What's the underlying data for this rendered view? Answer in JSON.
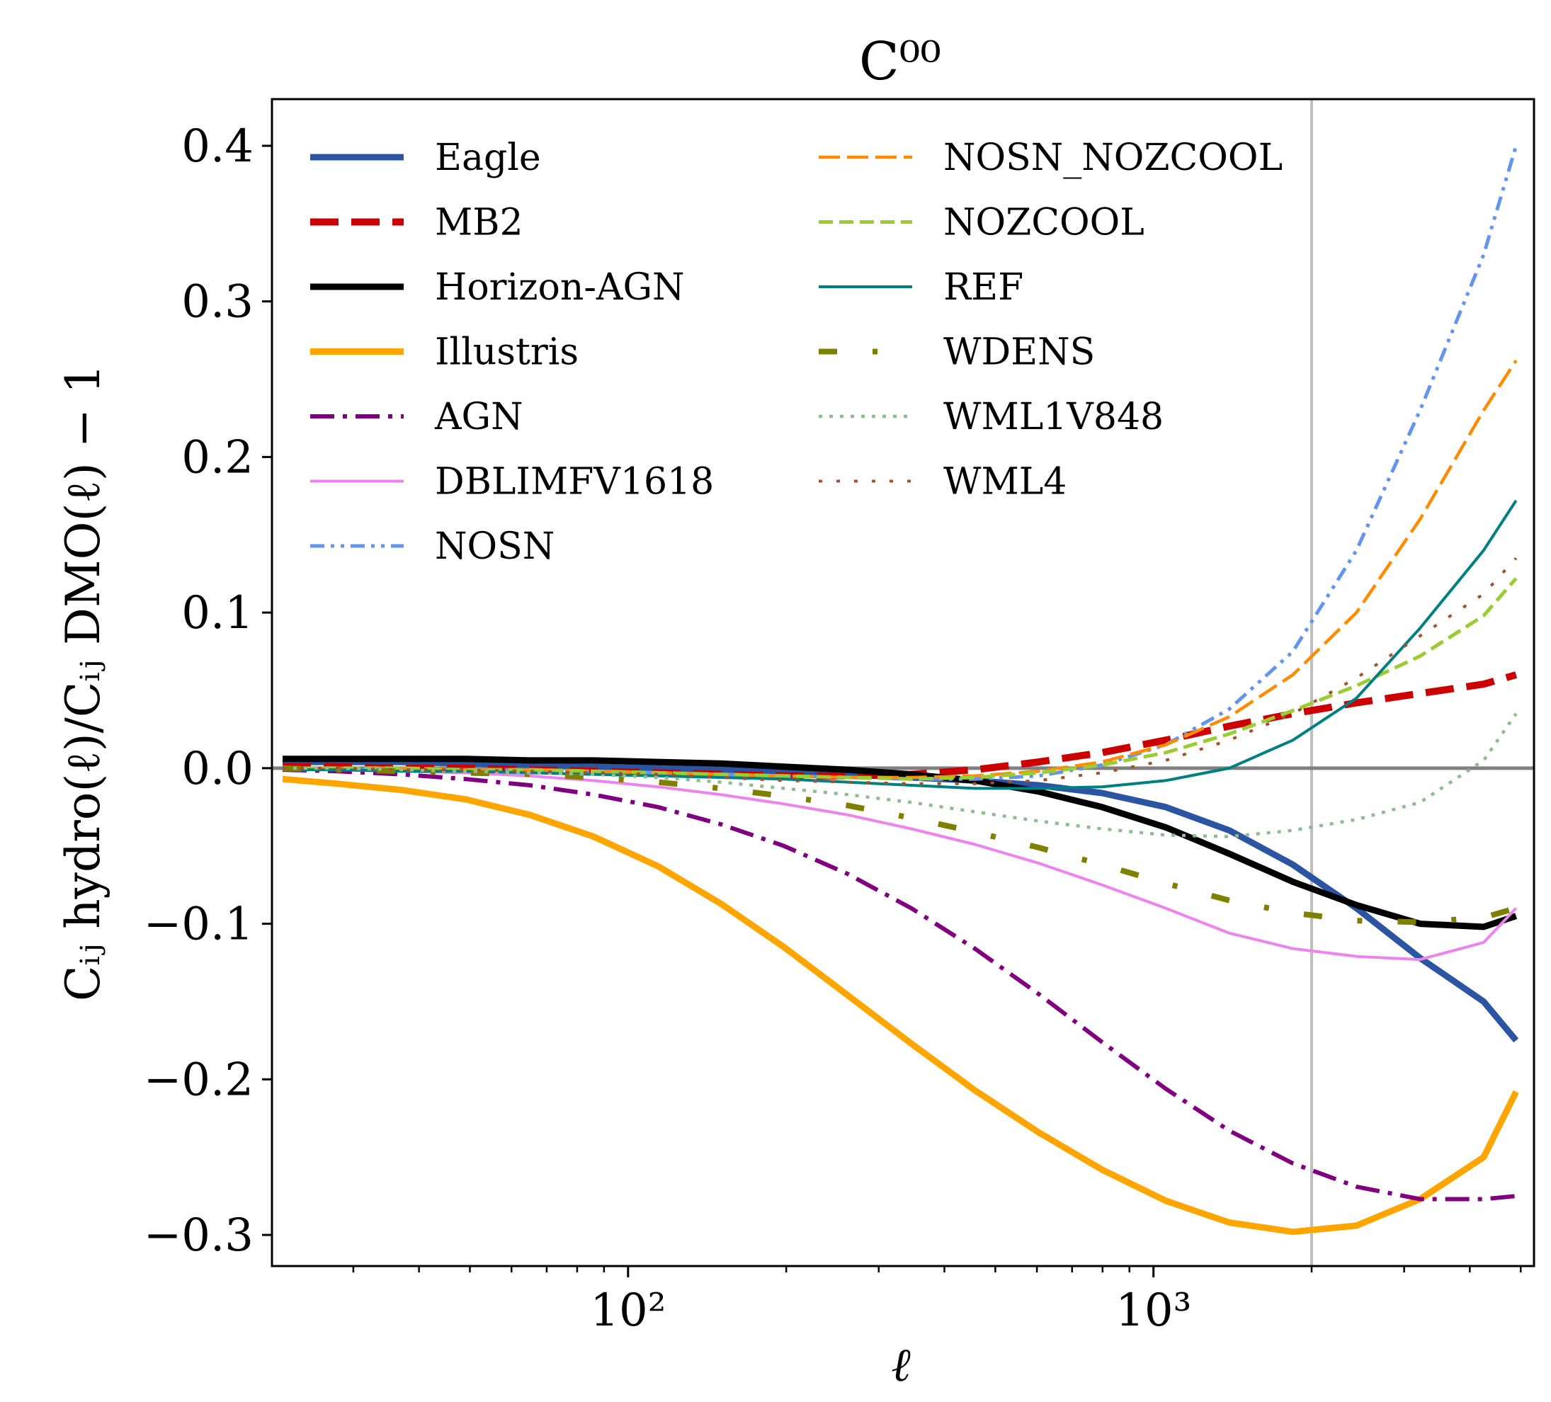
{
  "chart_data": {
    "type": "line",
    "title": "C⁰⁰",
    "xlabel": "ℓ",
    "ylabel": "Cᵢⱼ hydro(ℓ)/Cᵢⱼ DMO(ℓ) − 1",
    "xscale": "log",
    "xlim": [
      21,
      5300
    ],
    "ylim": [
      -0.32,
      0.43
    ],
    "xticks": [
      {
        "value": 100,
        "label": "10²"
      },
      {
        "value": 1000,
        "label": "10³"
      }
    ],
    "yticks": [
      {
        "value": -0.3,
        "label": "−0.3"
      },
      {
        "value": -0.2,
        "label": "−0.2"
      },
      {
        "value": -0.1,
        "label": "−0.1"
      },
      {
        "value": 0.0,
        "label": "0.0"
      },
      {
        "value": 0.1,
        "label": "0.1"
      },
      {
        "value": 0.2,
        "label": "0.2"
      },
      {
        "value": 0.3,
        "label": "0.3"
      },
      {
        "value": 0.4,
        "label": "0.4"
      }
    ],
    "reference_lines": {
      "horizontal_y": 0.0,
      "vertical_x": 2000
    },
    "grid": false,
    "legend_position": "top-left",
    "x": [
      22,
      28,
      37,
      49,
      65,
      86,
      114,
      150,
      198,
      262,
      346,
      457,
      604,
      798,
      1055,
      1394,
      1842,
      2434,
      3217,
      4251,
      4900
    ],
    "series": [
      {
        "name": "Eagle",
        "color": "#2b54a3",
        "style": "solid-thick",
        "values": [
          0.004,
          0.004,
          0.004,
          0.003,
          0.002,
          0.001,
          0.0,
          -0.001,
          -0.002,
          -0.004,
          -0.006,
          -0.008,
          -0.011,
          -0.016,
          -0.025,
          -0.04,
          -0.062,
          -0.09,
          -0.122,
          -0.15,
          -0.175
        ]
      },
      {
        "name": "MB2",
        "color": "#cc0000",
        "style": "dashed-thick",
        "values": [
          0.001,
          0.001,
          0.0,
          0.0,
          -0.001,
          -0.002,
          -0.003,
          -0.004,
          -0.005,
          -0.005,
          -0.004,
          -0.001,
          0.004,
          0.01,
          0.018,
          0.027,
          0.035,
          0.042,
          0.048,
          0.054,
          0.06
        ]
      },
      {
        "name": "Horizon-AGN",
        "color": "#000000",
        "style": "solid-thick",
        "values": [
          0.006,
          0.006,
          0.006,
          0.006,
          0.005,
          0.005,
          0.004,
          0.003,
          0.001,
          -0.001,
          -0.004,
          -0.008,
          -0.015,
          -0.025,
          -0.038,
          -0.055,
          -0.073,
          -0.088,
          -0.1,
          -0.102,
          -0.095
        ]
      },
      {
        "name": "Illustris",
        "color": "#ffa500",
        "style": "solid-thick",
        "values": [
          -0.007,
          -0.01,
          -0.014,
          -0.02,
          -0.03,
          -0.044,
          -0.063,
          -0.087,
          -0.115,
          -0.146,
          -0.177,
          -0.207,
          -0.234,
          -0.258,
          -0.278,
          -0.292,
          -0.298,
          -0.294,
          -0.277,
          -0.25,
          -0.208
        ]
      },
      {
        "name": "AGN",
        "color": "#800080",
        "style": "dashdot",
        "values": [
          -0.001,
          -0.002,
          -0.004,
          -0.007,
          -0.011,
          -0.017,
          -0.025,
          -0.036,
          -0.05,
          -0.068,
          -0.09,
          -0.116,
          -0.145,
          -0.176,
          -0.206,
          -0.233,
          -0.254,
          -0.269,
          -0.277,
          -0.277,
          -0.275
        ]
      },
      {
        "name": "DBLIMFV1618",
        "color": "#ee82ee",
        "style": "solid-thin",
        "values": [
          -0.001,
          -0.001,
          -0.002,
          -0.003,
          -0.005,
          -0.008,
          -0.012,
          -0.017,
          -0.023,
          -0.03,
          -0.039,
          -0.049,
          -0.061,
          -0.075,
          -0.09,
          -0.106,
          -0.116,
          -0.121,
          -0.123,
          -0.112,
          -0.09
        ]
      },
      {
        "name": "NOSN",
        "color": "#6495ed",
        "style": "dashdotdot",
        "values": [
          0.0,
          0.0,
          0.0,
          -0.001,
          -0.001,
          -0.002,
          -0.003,
          -0.004,
          -0.005,
          -0.006,
          -0.007,
          -0.007,
          -0.005,
          0.002,
          0.015,
          0.038,
          0.075,
          0.14,
          0.23,
          0.33,
          0.4
        ]
      },
      {
        "name": "NOSN_NOZCOOL",
        "color": "#ff8c00",
        "style": "dashed-long",
        "values": [
          0.0,
          0.0,
          0.0,
          -0.001,
          -0.001,
          -0.002,
          -0.003,
          -0.004,
          -0.005,
          -0.006,
          -0.006,
          -0.005,
          -0.002,
          0.004,
          0.015,
          0.033,
          0.06,
          0.1,
          0.16,
          0.23,
          0.262
        ]
      },
      {
        "name": "NOZCOOL",
        "color": "#9acd32",
        "style": "dashed",
        "values": [
          0.0,
          0.0,
          0.0,
          -0.001,
          -0.001,
          -0.002,
          -0.003,
          -0.004,
          -0.005,
          -0.006,
          -0.007,
          -0.006,
          -0.003,
          0.002,
          0.01,
          0.022,
          0.037,
          0.053,
          0.072,
          0.098,
          0.122
        ]
      },
      {
        "name": "REF",
        "color": "#008080",
        "style": "solid-thin",
        "values": [
          -0.001,
          -0.001,
          -0.002,
          -0.002,
          -0.003,
          -0.004,
          -0.005,
          -0.006,
          -0.007,
          -0.009,
          -0.011,
          -0.013,
          -0.013,
          -0.012,
          -0.008,
          0.0,
          0.018,
          0.045,
          0.09,
          0.14,
          0.172
        ]
      },
      {
        "name": "WDENS",
        "color": "#808000",
        "style": "dashdot-sparse",
        "values": [
          0.0,
          -0.001,
          -0.002,
          -0.003,
          -0.004,
          -0.006,
          -0.009,
          -0.013,
          -0.018,
          -0.024,
          -0.032,
          -0.041,
          -0.051,
          -0.062,
          -0.074,
          -0.085,
          -0.093,
          -0.098,
          -0.099,
          -0.096,
          -0.09
        ]
      },
      {
        "name": "WML1V848",
        "color": "#8fbc8f",
        "style": "dotted",
        "values": [
          0.0,
          0.0,
          -0.001,
          -0.002,
          -0.003,
          -0.004,
          -0.006,
          -0.009,
          -0.013,
          -0.017,
          -0.022,
          -0.028,
          -0.034,
          -0.039,
          -0.043,
          -0.044,
          -0.04,
          -0.033,
          -0.022,
          0.005,
          0.035
        ]
      },
      {
        "name": "WML4",
        "color": "#a0522d",
        "style": "dotted-sparse",
        "values": [
          0.0,
          0.0,
          -0.001,
          -0.001,
          -0.002,
          -0.003,
          -0.004,
          -0.006,
          -0.008,
          -0.009,
          -0.01,
          -0.01,
          -0.008,
          -0.003,
          0.005,
          0.018,
          0.035,
          0.058,
          0.085,
          0.112,
          0.135
        ]
      }
    ]
  }
}
